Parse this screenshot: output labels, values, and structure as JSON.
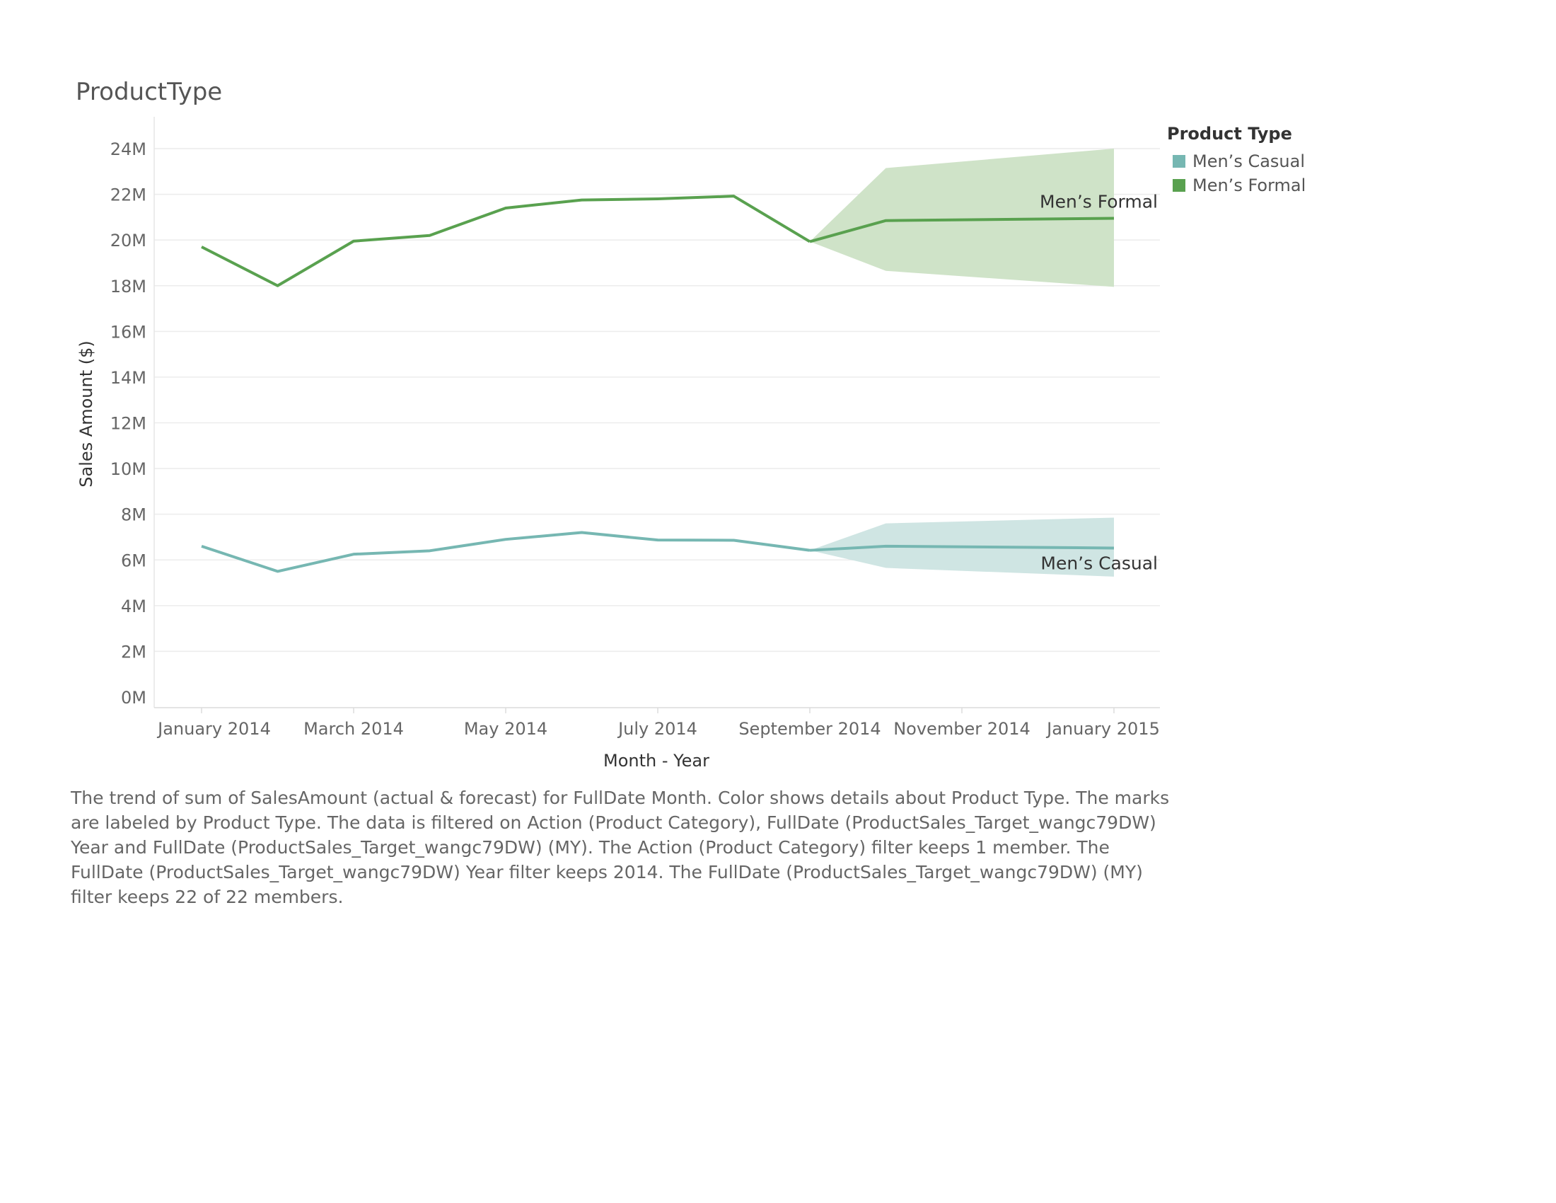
{
  "chart_data": {
    "type": "line",
    "title": "ProductType",
    "xlabel": "Month - Year",
    "ylabel": "Sales Amount ($)",
    "ylim": [
      0,
      24000000
    ],
    "yticks": [
      0,
      2000000,
      4000000,
      6000000,
      8000000,
      10000000,
      12000000,
      14000000,
      16000000,
      18000000,
      20000000,
      22000000,
      24000000
    ],
    "ytick_labels": [
      "0M",
      "2M",
      "4M",
      "6M",
      "8M",
      "10M",
      "12M",
      "14M",
      "16M",
      "18M",
      "20M",
      "22M",
      "24M"
    ],
    "x": [
      "2014-01",
      "2014-02",
      "2014-03",
      "2014-04",
      "2014-05",
      "2014-06",
      "2014-07",
      "2014-08",
      "2014-09",
      "2014-10",
      "2014-11",
      "2014-12",
      "2015-01"
    ],
    "xtick_labels": [
      "January 2014",
      "March 2014",
      "May 2014",
      "July 2014",
      "September 2014",
      "November 2014",
      "January 2015"
    ],
    "xtick_positions": [
      "2014-01",
      "2014-03",
      "2014-05",
      "2014-07",
      "2014-09",
      "2014-11",
      "2015-01"
    ],
    "grid": true,
    "legend_title": "Product Type",
    "legend_position": "top-right",
    "series": [
      {
        "name": "Men’s Casual",
        "color": "#76b7b2",
        "band_color": "#cfe5e3",
        "actual_x": [
          "2014-01",
          "2014-02",
          "2014-03",
          "2014-04",
          "2014-05",
          "2014-06",
          "2014-07",
          "2014-08",
          "2014-09"
        ],
        "actual_values": [
          6600000,
          5500000,
          6250000,
          6400000,
          6900000,
          7200000,
          6870000,
          6860000,
          6420000
        ],
        "forecast_x": [
          "2014-09",
          "2014-10",
          "2015-01"
        ],
        "forecast_values": [
          6420000,
          6600000,
          6520000
        ],
        "forecast_upper": [
          6420000,
          7600000,
          7850000
        ],
        "forecast_lower": [
          6420000,
          5650000,
          5270000
        ]
      },
      {
        "name": "Men’s Formal",
        "color": "#59a14f",
        "band_color": "#cfe3c8",
        "actual_x": [
          "2014-01",
          "2014-02",
          "2014-03",
          "2014-04",
          "2014-05",
          "2014-06",
          "2014-07",
          "2014-08",
          "2014-09"
        ],
        "actual_values": [
          19700000,
          18000000,
          19950000,
          20200000,
          21400000,
          21750000,
          21800000,
          21920000,
          19930000
        ],
        "forecast_x": [
          "2014-09",
          "2014-10",
          "2015-01"
        ],
        "forecast_values": [
          19930000,
          20850000,
          20950000
        ],
        "forecast_upper": [
          19930000,
          23150000,
          24000000
        ],
        "forecast_lower": [
          19930000,
          18650000,
          17950000
        ]
      }
    ]
  },
  "series_labels": {
    "formal": "Men’s Formal",
    "casual": "Men’s Casual"
  },
  "caption": "The trend of sum of SalesAmount (actual & forecast)  for FullDate Month.  Color shows details about Product Type.  The marks are labeled by Product Type. The data is filtered on Action (Product Category), FullDate (ProductSales_Target_wangc79DW) Year and FullDate (ProductSales_Target_wangc79DW) (MY). The Action (Product Category) filter keeps 1 member. The FullDate (ProductSales_Target_wangc79DW) Year filter keeps 2014. The FullDate (ProductSales_Target_wangc79DW) (MY) filter keeps 22 of 22 members."
}
